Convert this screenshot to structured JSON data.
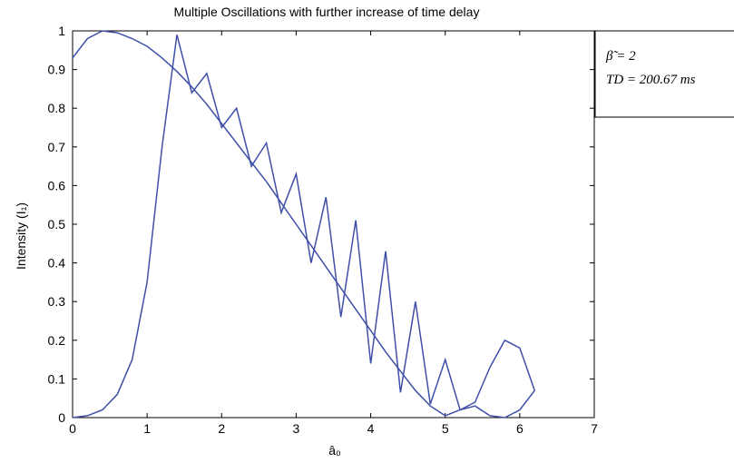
{
  "chart_data": {
    "type": "line",
    "title": "Multiple Oscillations with further increase of time delay",
    "xlabel": "â₀",
    "ylabel": "Intensity (I₁)",
    "xlim": [
      0,
      7
    ],
    "ylim": [
      0,
      1
    ],
    "xticks": [
      "0",
      "1",
      "2",
      "3",
      "4",
      "5",
      "6",
      "7"
    ],
    "yticks": [
      "0",
      "0.1",
      "0.2",
      "0.3",
      "0.4",
      "0.5",
      "0.6",
      "0.7",
      "0.8",
      "0.9",
      "1"
    ],
    "grid": false,
    "line_color": "#3f4fa8",
    "annotation": {
      "line1": "β̃ = 2",
      "line2": "TD = 200.67 ms"
    },
    "series": [
      {
        "x": [
          0,
          0.2,
          0.4,
          0.6,
          0.8,
          1.0,
          1.2,
          1.4,
          1.6,
          1.8,
          2.0,
          2.2,
          2.4,
          2.6,
          2.8,
          3.0,
          3.2,
          3.4,
          3.6,
          3.8,
          4.0,
          4.2,
          4.4,
          4.6,
          4.8,
          5.0,
          5.2,
          5.4,
          5.6,
          5.8,
          6.0,
          6.2
        ],
        "y": [
          0.93,
          0.98,
          1.0,
          0.995,
          0.98,
          0.96,
          0.93,
          0.895,
          0.855,
          0.81,
          0.76,
          0.71,
          0.66,
          0.61,
          0.555,
          0.5,
          0.445,
          0.39,
          0.335,
          0.28,
          0.225,
          0.17,
          0.12,
          0.07,
          0.03,
          0.005,
          0.02,
          0.04,
          0.13,
          0.2,
          0.18,
          0.07
        ]
      },
      {
        "x": [
          0,
          0.2,
          0.4,
          0.6,
          0.8,
          1.0,
          1.2,
          1.4,
          1.6,
          1.8,
          2.0,
          2.2,
          2.4,
          2.6,
          2.8,
          3.0,
          3.2,
          3.4,
          3.6,
          3.8,
          4.0,
          4.2,
          4.4,
          4.6,
          4.8,
          5.0,
          5.2,
          5.4,
          5.6,
          5.8,
          6.0,
          6.2
        ],
        "y": [
          0,
          0.005,
          0.02,
          0.06,
          0.15,
          0.35,
          0.7,
          0.99,
          0.84,
          0.89,
          0.75,
          0.8,
          0.65,
          0.71,
          0.53,
          0.63,
          0.4,
          0.57,
          0.26,
          0.51,
          0.14,
          0.43,
          0.065,
          0.3,
          0.035,
          0.15,
          0.02,
          0.03,
          0.005,
          0.0,
          0.02,
          0.07
        ]
      }
    ]
  }
}
